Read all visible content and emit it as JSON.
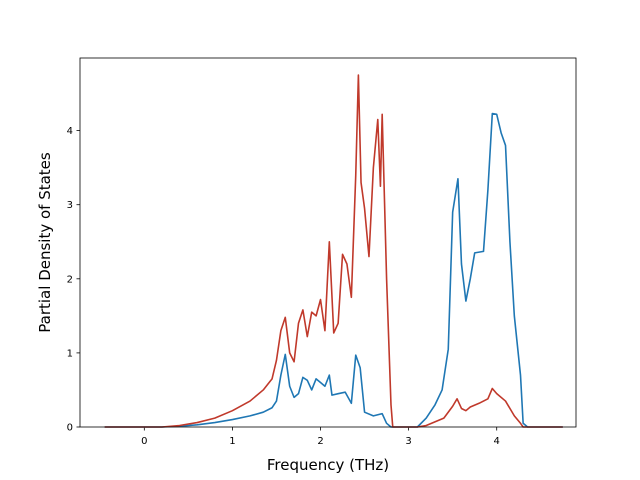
{
  "chart_data": {
    "type": "line",
    "xlabel": "Frequency (THz)",
    "ylabel": "Partial Density of States",
    "xlim": [
      -0.73,
      4.9
    ],
    "ylim": [
      0,
      4.98
    ],
    "xticks": [
      0,
      1,
      2,
      3,
      4
    ],
    "yticks": [
      0,
      1,
      2,
      3,
      4
    ],
    "grid": false,
    "series": [
      {
        "color": "#1f77b4",
        "points": [
          [
            -0.45,
            0
          ],
          [
            0.2,
            0
          ],
          [
            0.4,
            0.01
          ],
          [
            0.6,
            0.03
          ],
          [
            0.8,
            0.06
          ],
          [
            1.0,
            0.1
          ],
          [
            1.2,
            0.15
          ],
          [
            1.35,
            0.2
          ],
          [
            1.45,
            0.26
          ],
          [
            1.5,
            0.35
          ],
          [
            1.55,
            0.7
          ],
          [
            1.6,
            0.98
          ],
          [
            1.65,
            0.55
          ],
          [
            1.7,
            0.4
          ],
          [
            1.75,
            0.45
          ],
          [
            1.8,
            0.67
          ],
          [
            1.85,
            0.63
          ],
          [
            1.9,
            0.5
          ],
          [
            1.95,
            0.65
          ],
          [
            2.0,
            0.6
          ],
          [
            2.05,
            0.55
          ],
          [
            2.1,
            0.7
          ],
          [
            2.13,
            0.43
          ],
          [
            2.2,
            0.45
          ],
          [
            2.28,
            0.47
          ],
          [
            2.35,
            0.32
          ],
          [
            2.4,
            0.97
          ],
          [
            2.45,
            0.8
          ],
          [
            2.5,
            0.2
          ],
          [
            2.6,
            0.15
          ],
          [
            2.7,
            0.18
          ],
          [
            2.75,
            0.05
          ],
          [
            2.8,
            0
          ],
          [
            3.1,
            0
          ],
          [
            3.2,
            0.12
          ],
          [
            3.3,
            0.3
          ],
          [
            3.38,
            0.5
          ],
          [
            3.45,
            1.05
          ],
          [
            3.5,
            2.9
          ],
          [
            3.56,
            3.35
          ],
          [
            3.6,
            2.2
          ],
          [
            3.65,
            1.7
          ],
          [
            3.7,
            2.0
          ],
          [
            3.75,
            2.35
          ],
          [
            3.85,
            2.37
          ],
          [
            3.9,
            3.2
          ],
          [
            3.95,
            4.23
          ],
          [
            4.0,
            4.22
          ],
          [
            4.05,
            3.97
          ],
          [
            4.1,
            3.8
          ],
          [
            4.15,
            2.5
          ],
          [
            4.2,
            1.5
          ],
          [
            4.27,
            0.7
          ],
          [
            4.3,
            0.05
          ],
          [
            4.35,
            0
          ],
          [
            4.75,
            0
          ]
        ]
      },
      {
        "color": "#c0392b",
        "points": [
          [
            -0.45,
            0
          ],
          [
            0.2,
            0
          ],
          [
            0.4,
            0.02
          ],
          [
            0.6,
            0.06
          ],
          [
            0.8,
            0.12
          ],
          [
            1.0,
            0.22
          ],
          [
            1.2,
            0.35
          ],
          [
            1.35,
            0.5
          ],
          [
            1.45,
            0.65
          ],
          [
            1.5,
            0.9
          ],
          [
            1.55,
            1.3
          ],
          [
            1.6,
            1.48
          ],
          [
            1.65,
            1.0
          ],
          [
            1.7,
            0.88
          ],
          [
            1.75,
            1.4
          ],
          [
            1.8,
            1.58
          ],
          [
            1.85,
            1.22
          ],
          [
            1.9,
            1.55
          ],
          [
            1.95,
            1.5
          ],
          [
            2.0,
            1.72
          ],
          [
            2.05,
            1.3
          ],
          [
            2.1,
            2.5
          ],
          [
            2.15,
            1.27
          ],
          [
            2.2,
            1.4
          ],
          [
            2.25,
            2.33
          ],
          [
            2.3,
            2.2
          ],
          [
            2.35,
            1.75
          ],
          [
            2.4,
            3.4
          ],
          [
            2.43,
            4.75
          ],
          [
            2.46,
            3.3
          ],
          [
            2.5,
            2.95
          ],
          [
            2.55,
            2.3
          ],
          [
            2.6,
            3.5
          ],
          [
            2.65,
            4.15
          ],
          [
            2.68,
            3.25
          ],
          [
            2.7,
            4.22
          ],
          [
            2.75,
            2.0
          ],
          [
            2.8,
            0.3
          ],
          [
            2.82,
            0
          ],
          [
            3.1,
            0
          ],
          [
            3.2,
            0.02
          ],
          [
            3.4,
            0.12
          ],
          [
            3.5,
            0.28
          ],
          [
            3.55,
            0.38
          ],
          [
            3.6,
            0.25
          ],
          [
            3.65,
            0.22
          ],
          [
            3.7,
            0.27
          ],
          [
            3.8,
            0.32
          ],
          [
            3.9,
            0.38
          ],
          [
            3.95,
            0.52
          ],
          [
            4.0,
            0.45
          ],
          [
            4.1,
            0.35
          ],
          [
            4.2,
            0.15
          ],
          [
            4.27,
            0.05
          ],
          [
            4.3,
            0
          ],
          [
            4.75,
            0
          ]
        ]
      }
    ]
  }
}
